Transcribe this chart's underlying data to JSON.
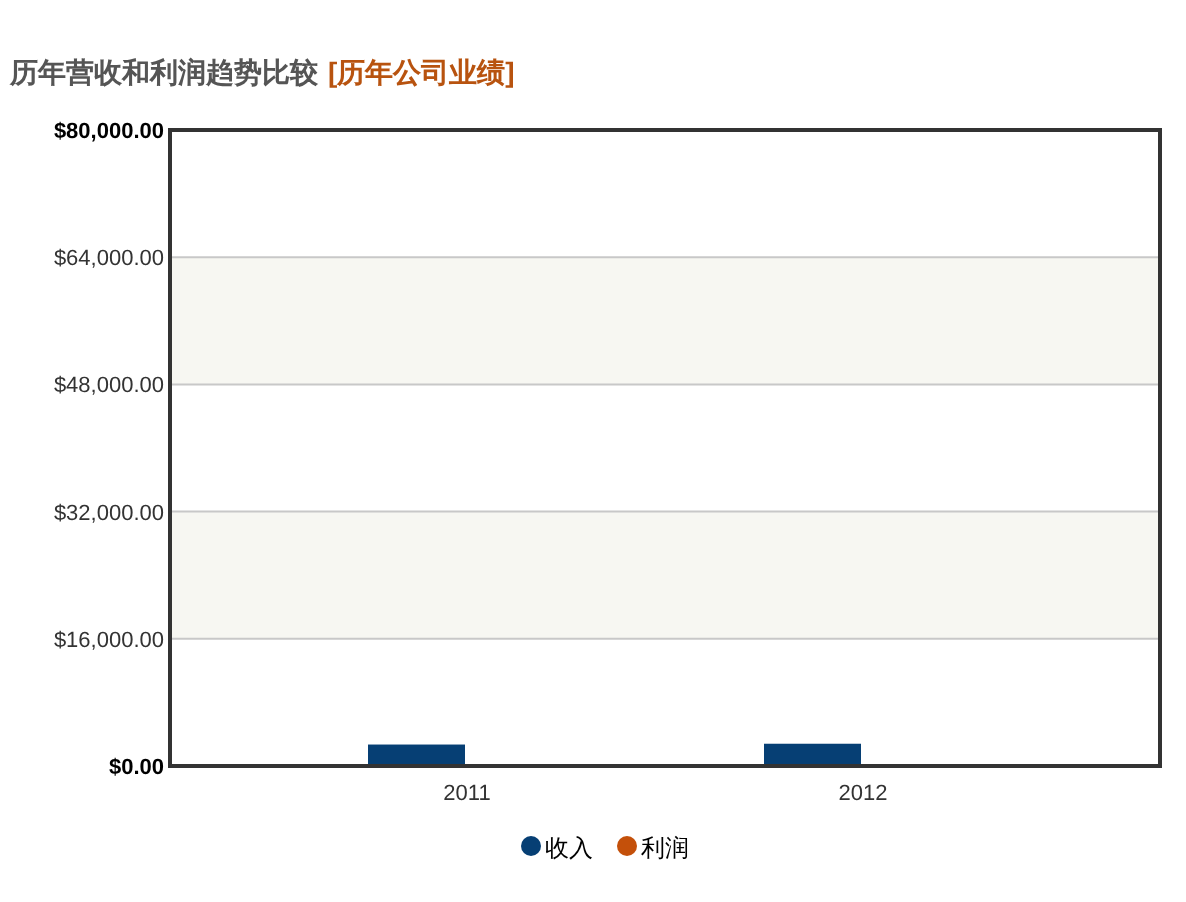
{
  "chart_data": {
    "type": "bar",
    "title": "历年营收和利润趋势比较",
    "subtitle": "[历年公司业绩]",
    "categories": [
      "2011",
      "2012"
    ],
    "series": [
      {
        "name": "收入",
        "color": "#063f74",
        "values": [
          2700,
          2800
        ]
      },
      {
        "name": "利润",
        "color": "#c4500a",
        "values": [
          0,
          0
        ]
      }
    ],
    "ylim": [
      0,
      80000
    ],
    "yticks": [
      {
        "value": 0,
        "label": "$0.00"
      },
      {
        "value": 16000,
        "label": "$16,000.00"
      },
      {
        "value": 32000,
        "label": "$32,000.00"
      },
      {
        "value": 48000,
        "label": "$48,000.00"
      },
      {
        "value": 64000,
        "label": "$64,000.00"
      },
      {
        "value": 80000,
        "label": "$80,000.00"
      }
    ],
    "grid": "y",
    "legend": "bottom"
  }
}
